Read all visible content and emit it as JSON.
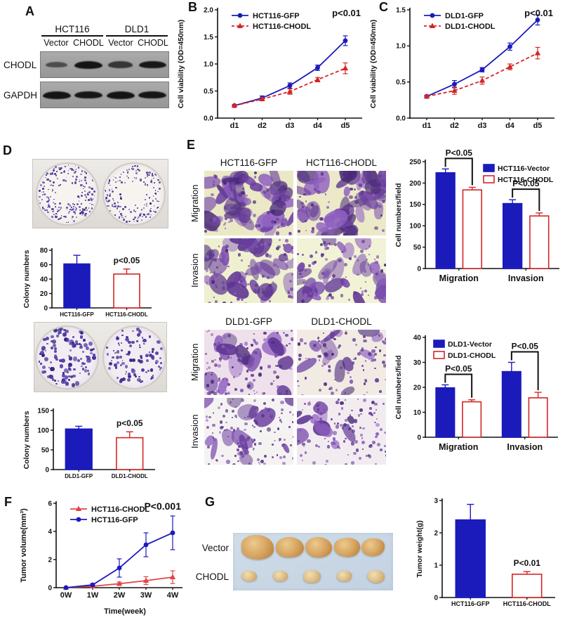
{
  "panels": {
    "A": {
      "label": "A",
      "blot": {
        "group_headers": [
          "HCT116",
          "DLD1"
        ],
        "lane_labels": [
          "Vector",
          "CHODL",
          "Vector",
          "CHODL"
        ],
        "rows": [
          {
            "label": "CHODL",
            "band_intensities": [
              0.38,
              1.0,
              0.62,
              0.95
            ]
          },
          {
            "label": "GAPDH",
            "band_intensities": [
              1.0,
              0.97,
              1.0,
              0.97
            ]
          }
        ]
      }
    },
    "B": {
      "label": "B"
    },
    "C": {
      "label": "C"
    },
    "D": {
      "label": "D"
    },
    "E": {
      "label": "E",
      "top": {
        "col_headers": [
          "HCT116-GFP",
          "HCT116-CHODL"
        ],
        "row_labels": [
          "Migration",
          "Invasion"
        ]
      },
      "bottom": {
        "col_headers": [
          "DLD1-GFP",
          "DLD1-CHODL"
        ],
        "row_labels": [
          "Migration",
          "Invasion"
        ]
      }
    },
    "F": {
      "label": "F"
    },
    "G": {
      "label": "G",
      "photo_row_labels": [
        "Vector",
        "CHODL"
      ]
    }
  },
  "colors": {
    "blue": "#1b1bbc",
    "red": "#d42525",
    "light_red": "#e04545",
    "stain_purple": "#6b3fa0"
  },
  "chart_data": [
    {
      "id": "B",
      "type": "line",
      "ylabel": "Cell viability (OD=450nm)",
      "x_labels": [
        "d1",
        "d2",
        "d3",
        "d4",
        "d5"
      ],
      "ylim": [
        0,
        2.0
      ],
      "ytick_values": [
        0,
        0.5,
        1.0,
        1.5,
        2.0
      ],
      "yticks": [
        "0.0",
        "0.5",
        "1.0",
        "1.5",
        "2.0"
      ],
      "annotation": "p<0.01",
      "legend_position": "top-left",
      "grid": false,
      "series": [
        {
          "name": "HCT116-GFP",
          "color": "#1b1bbc",
          "marker": "circle",
          "dash": false,
          "values": [
            0.23,
            0.37,
            0.6,
            0.93,
            1.43
          ],
          "errors": [
            0.02,
            0.04,
            0.05,
            0.05,
            0.09
          ]
        },
        {
          "name": "HCT116-CHODL",
          "color": "#d42525",
          "marker": "triangle",
          "dash": true,
          "values": [
            0.23,
            0.35,
            0.49,
            0.71,
            0.92
          ],
          "errors": [
            0.02,
            0.03,
            0.05,
            0.04,
            0.1
          ]
        }
      ]
    },
    {
      "id": "C",
      "type": "line",
      "ylabel": "Cell viability (OD=450nm)",
      "x_labels": [
        "d1",
        "d2",
        "d3",
        "d4",
        "d5"
      ],
      "ylim": [
        0,
        1.5
      ],
      "ytick_values": [
        0,
        0.5,
        1.0,
        1.5
      ],
      "yticks": [
        "0.0",
        "0.5",
        "1.0",
        "1.5"
      ],
      "annotation": "p<0.01",
      "legend_position": "top-left",
      "grid": false,
      "series": [
        {
          "name": "DLD1-GFP",
          "color": "#1b1bbc",
          "marker": "circle",
          "dash": false,
          "values": [
            0.3,
            0.47,
            0.67,
            0.99,
            1.36
          ],
          "errors": [
            0.02,
            0.05,
            0.03,
            0.05,
            0.07
          ]
        },
        {
          "name": "DLD1-CHODL",
          "color": "#d42525",
          "marker": "triangle",
          "dash": true,
          "values": [
            0.3,
            0.38,
            0.52,
            0.71,
            0.9
          ],
          "errors": [
            0.02,
            0.05,
            0.05,
            0.04,
            0.08
          ]
        }
      ]
    },
    {
      "id": "D1",
      "type": "bar",
      "ylabel": "Colony numbers",
      "categories": [
        "HCT116-GFP",
        "HCT116-CHODL"
      ],
      "values": [
        61,
        47
      ],
      "errors": [
        12,
        7
      ],
      "ylim": [
        0,
        80
      ],
      "ytick_values": [
        0,
        20,
        40,
        60,
        80
      ],
      "yticks": [
        "0",
        "20",
        "40",
        "60",
        "80"
      ],
      "annotation": "p<0.05",
      "bar_styles": [
        {
          "fill": "#1b1bbc",
          "stroke": "#1b1bbc"
        },
        {
          "fill": "#ffffff",
          "stroke": "#d42525"
        }
      ]
    },
    {
      "id": "D2",
      "type": "bar",
      "ylabel": "Colony numbers",
      "categories": [
        "DLD1-GFP",
        "DLD1-CHODL"
      ],
      "values": [
        103,
        81
      ],
      "errors": [
        7,
        15
      ],
      "ylim": [
        0,
        150
      ],
      "ytick_values": [
        0,
        50,
        100,
        150
      ],
      "yticks": [
        "0",
        "50",
        "100",
        "150"
      ],
      "annotation": "p<0.05",
      "bar_styles": [
        {
          "fill": "#1b1bbc",
          "stroke": "#1b1bbc"
        },
        {
          "fill": "#ffffff",
          "stroke": "#d42525"
        }
      ]
    },
    {
      "id": "E1",
      "type": "grouped-bar",
      "ylabel": "Cell numbers/field",
      "groups": [
        "Migration",
        "Invasion"
      ],
      "ylim": [
        0,
        250
      ],
      "ytick_values": [
        0,
        50,
        100,
        150,
        200,
        250
      ],
      "yticks": [
        "0",
        "50",
        "100",
        "150",
        "200",
        "250"
      ],
      "legend_position": "top-right",
      "series": [
        {
          "name": "HCT116-Vector",
          "fill": "#1b1bbc",
          "stroke": "#1b1bbc",
          "values": [
            224,
            152
          ],
          "errors": [
            9,
            9
          ]
        },
        {
          "name": "HCT116-CHODL",
          "fill": "#ffffff",
          "stroke": "#d42525",
          "values": [
            184,
            123
          ],
          "errors": [
            6,
            7
          ]
        }
      ],
      "brackets": [
        {
          "group": 0,
          "label": "P<0.05"
        },
        {
          "group": 1,
          "label": "P<0.05"
        }
      ]
    },
    {
      "id": "E2",
      "type": "grouped-bar",
      "ylabel": "Cell numbers/field",
      "groups": [
        "Migration",
        "Invasion"
      ],
      "ylim": [
        0,
        40
      ],
      "ytick_values": [
        0,
        10,
        20,
        30,
        40
      ],
      "yticks": [
        "0",
        "10",
        "20",
        "30",
        "40"
      ],
      "legend_position": "top-left",
      "series": [
        {
          "name": "DLD1-Vector",
          "fill": "#1b1bbc",
          "stroke": "#1b1bbc",
          "values": [
            19.8,
            26.3
          ],
          "errors": [
            1.2,
            3.7
          ]
        },
        {
          "name": "DLD1-CHODL",
          "fill": "#ffffff",
          "stroke": "#d42525",
          "values": [
            14.2,
            15.8
          ],
          "errors": [
            0.8,
            2.2
          ]
        }
      ],
      "brackets": [
        {
          "group": 0,
          "label": "P<0.05"
        },
        {
          "group": 1,
          "label": "P<0.05"
        }
      ]
    },
    {
      "id": "F",
      "type": "line",
      "ylabel": "Tumor volume(mm³)",
      "xlabel": "Time(week)",
      "x_labels": [
        "0W",
        "1W",
        "2W",
        "3W",
        "4W"
      ],
      "ylim": [
        0,
        6
      ],
      "ytick_values": [
        0,
        2,
        4,
        6
      ],
      "yticks": [
        "0",
        "2",
        "4",
        "6"
      ],
      "annotation": "P<0.001",
      "legend_position": "top-left",
      "grid": false,
      "series": [
        {
          "name": "HCT116-CHODL",
          "color": "#e04545",
          "marker": "triangle",
          "dash": false,
          "values": [
            0,
            0.1,
            0.28,
            0.5,
            0.75
          ],
          "errors": [
            0,
            0.06,
            0.12,
            0.28,
            0.45
          ]
        },
        {
          "name": "HCT116-GFP",
          "color": "#1b1bbc",
          "marker": "circle",
          "dash": false,
          "values": [
            0,
            0.2,
            1.4,
            3.05,
            3.9
          ],
          "errors": [
            0,
            0.1,
            0.65,
            0.85,
            1.2
          ]
        }
      ]
    },
    {
      "id": "G",
      "type": "bar",
      "ylabel": "Tumor weight(g)",
      "categories": [
        "HCT116-GFP",
        "HCT116-CHODL"
      ],
      "values": [
        2.4,
        0.72
      ],
      "errors": [
        0.48,
        0.08
      ],
      "ylim": [
        0,
        3
      ],
      "ytick_values": [
        0,
        1,
        2,
        3
      ],
      "yticks": [
        "0",
        "1",
        "2",
        "3"
      ],
      "annotation": "P<0.01",
      "bar_styles": [
        {
          "fill": "#1b1bbc",
          "stroke": "#1b1bbc"
        },
        {
          "fill": "#ffffff",
          "stroke": "#d42525"
        }
      ]
    }
  ]
}
